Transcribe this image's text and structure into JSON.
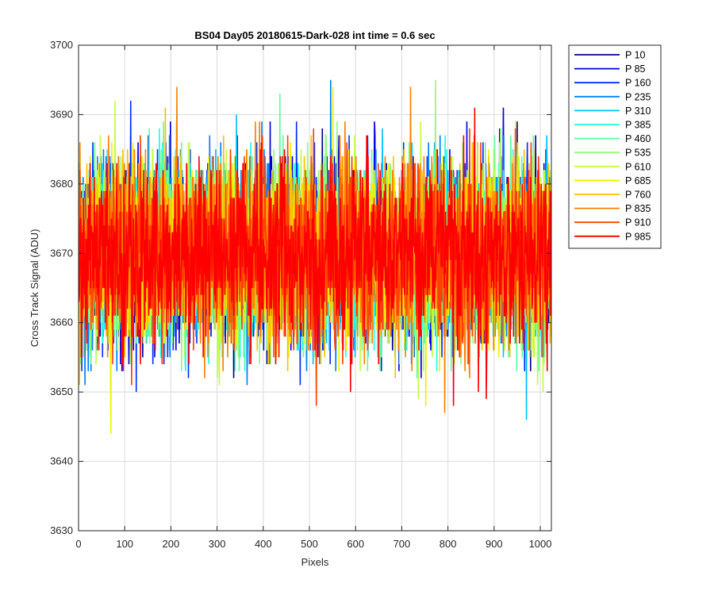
{
  "chart_data": {
    "type": "line",
    "title": "BS04 Day05 20180615-Dark-028 int time = 0.6 sec",
    "xlabel": "Pixels",
    "ylabel": "Cross Track Signal (ADU)",
    "xlim": [
      0,
      1024
    ],
    "ylim": [
      3630,
      3700
    ],
    "xticks": [
      0,
      100,
      200,
      300,
      400,
      500,
      600,
      700,
      800,
      900,
      1000
    ],
    "yticks": [
      3630,
      3640,
      3650,
      3660,
      3670,
      3680,
      3690,
      3700
    ],
    "grid": true,
    "legend_position": "outside-top-right",
    "noise": {
      "mean": 3670,
      "spread": 8.5,
      "min": 3638,
      "max": 3700
    },
    "series": [
      {
        "name": "P 10",
        "color": "#00008f"
      },
      {
        "name": "P 85",
        "color": "#0000df"
      },
      {
        "name": "P 160",
        "color": "#0030ff"
      },
      {
        "name": "P 235",
        "color": "#0080ff"
      },
      {
        "name": "P 310",
        "color": "#00c0ff"
      },
      {
        "name": "P 385",
        "color": "#20ffe0"
      },
      {
        "name": "P 460",
        "color": "#60ffa0"
      },
      {
        "name": "P 535",
        "color": "#90ff70"
      },
      {
        "name": "P 610",
        "color": "#c0ff40"
      },
      {
        "name": "P 685",
        "color": "#f0f000"
      },
      {
        "name": "P 760",
        "color": "#ffc000"
      },
      {
        "name": "P 835",
        "color": "#ff8000"
      },
      {
        "name": "P 910",
        "color": "#ff4000"
      },
      {
        "name": "P 985",
        "color": "#ff0000"
      }
    ]
  }
}
